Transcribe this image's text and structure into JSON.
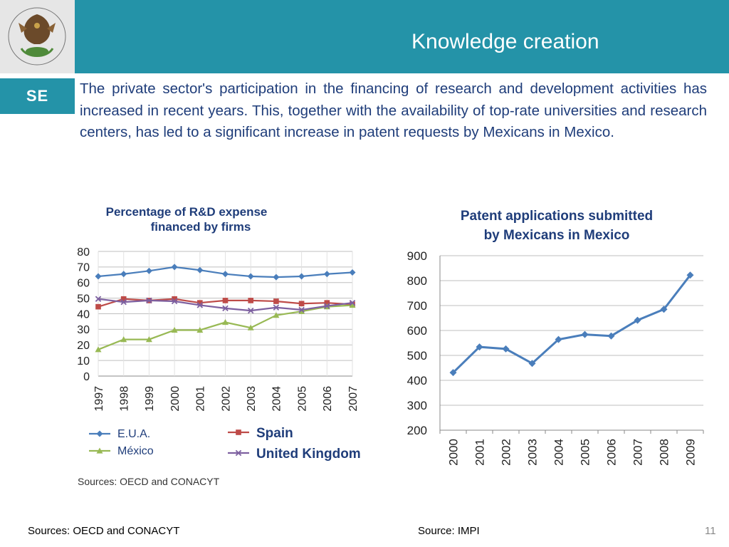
{
  "header": {
    "title": "Knowledge creation",
    "badge": "SE"
  },
  "intro": "The private sector's participation in the financing of research and development activities has increased in recent years. This, together with the availability of top-rate universities and research centers, has led to a significant increase in patent requests by Mexicans in Mexico.",
  "footer": {
    "source_left": "Sources: OECD and CONACYT",
    "source_right": "Source: IMPI",
    "page_number": "11"
  },
  "colors": {
    "header_bg": "#2493A8",
    "text_blue": "#1F3D7A"
  },
  "chart_data": [
    {
      "type": "line",
      "title": "Percentage of R&D expense financed by firms",
      "title_lines": [
        "Percentage of R&D expense",
        "financed by firms"
      ],
      "categories": [
        "1997",
        "1998",
        "1999",
        "2000",
        "2001",
        "2002",
        "2003",
        "2004",
        "2005",
        "2006",
        "2007"
      ],
      "ylim": [
        0,
        80
      ],
      "yticks": [
        0,
        10,
        20,
        30,
        40,
        50,
        60,
        70,
        80
      ],
      "grid": true,
      "legend": "bottom",
      "source_note": "Sources: OECD and CONACYT",
      "series": [
        {
          "name": "E.U.A.",
          "color": "#4A7EBB",
          "marker": "diamond",
          "values": [
            64,
            65.5,
            67.5,
            70,
            68,
            65.5,
            64,
            63.5,
            64,
            65.5,
            66.5
          ]
        },
        {
          "name": "Spain",
          "color": "#BE4B48",
          "marker": "square",
          "values": [
            44.5,
            49.5,
            48.5,
            49.5,
            47,
            48.5,
            48.5,
            48,
            46.5,
            47,
            46
          ]
        },
        {
          "name": "México",
          "color": "#98B954",
          "marker": "triangle",
          "values": [
            17,
            23.5,
            23.5,
            29.5,
            29.5,
            34.5,
            31,
            39,
            41.5,
            44.5,
            45.5
          ]
        },
        {
          "name": "United Kingdom",
          "color": "#7D60A0",
          "marker": "x",
          "values": [
            49.5,
            47.5,
            48.5,
            48,
            45.5,
            43.5,
            42,
            44,
            42.5,
            45,
            47
          ]
        }
      ]
    },
    {
      "type": "line",
      "title": "Patent applications submitted by Mexicans in Mexico",
      "title_lines": [
        "Patent applications submitted",
        "by Mexicans in Mexico"
      ],
      "categories": [
        "2000",
        "2001",
        "2002",
        "2003",
        "2004",
        "2005",
        "2006",
        "2007",
        "2008",
        "2009"
      ],
      "ylim": [
        200,
        900
      ],
      "yticks": [
        200,
        300,
        400,
        500,
        600,
        700,
        800,
        900
      ],
      "grid": true,
      "series": [
        {
          "color": "#4A7EBB",
          "marker": "diamond",
          "values": [
            431,
            534,
            526,
            468,
            564,
            584,
            578,
            641,
            685,
            822
          ]
        }
      ]
    }
  ]
}
